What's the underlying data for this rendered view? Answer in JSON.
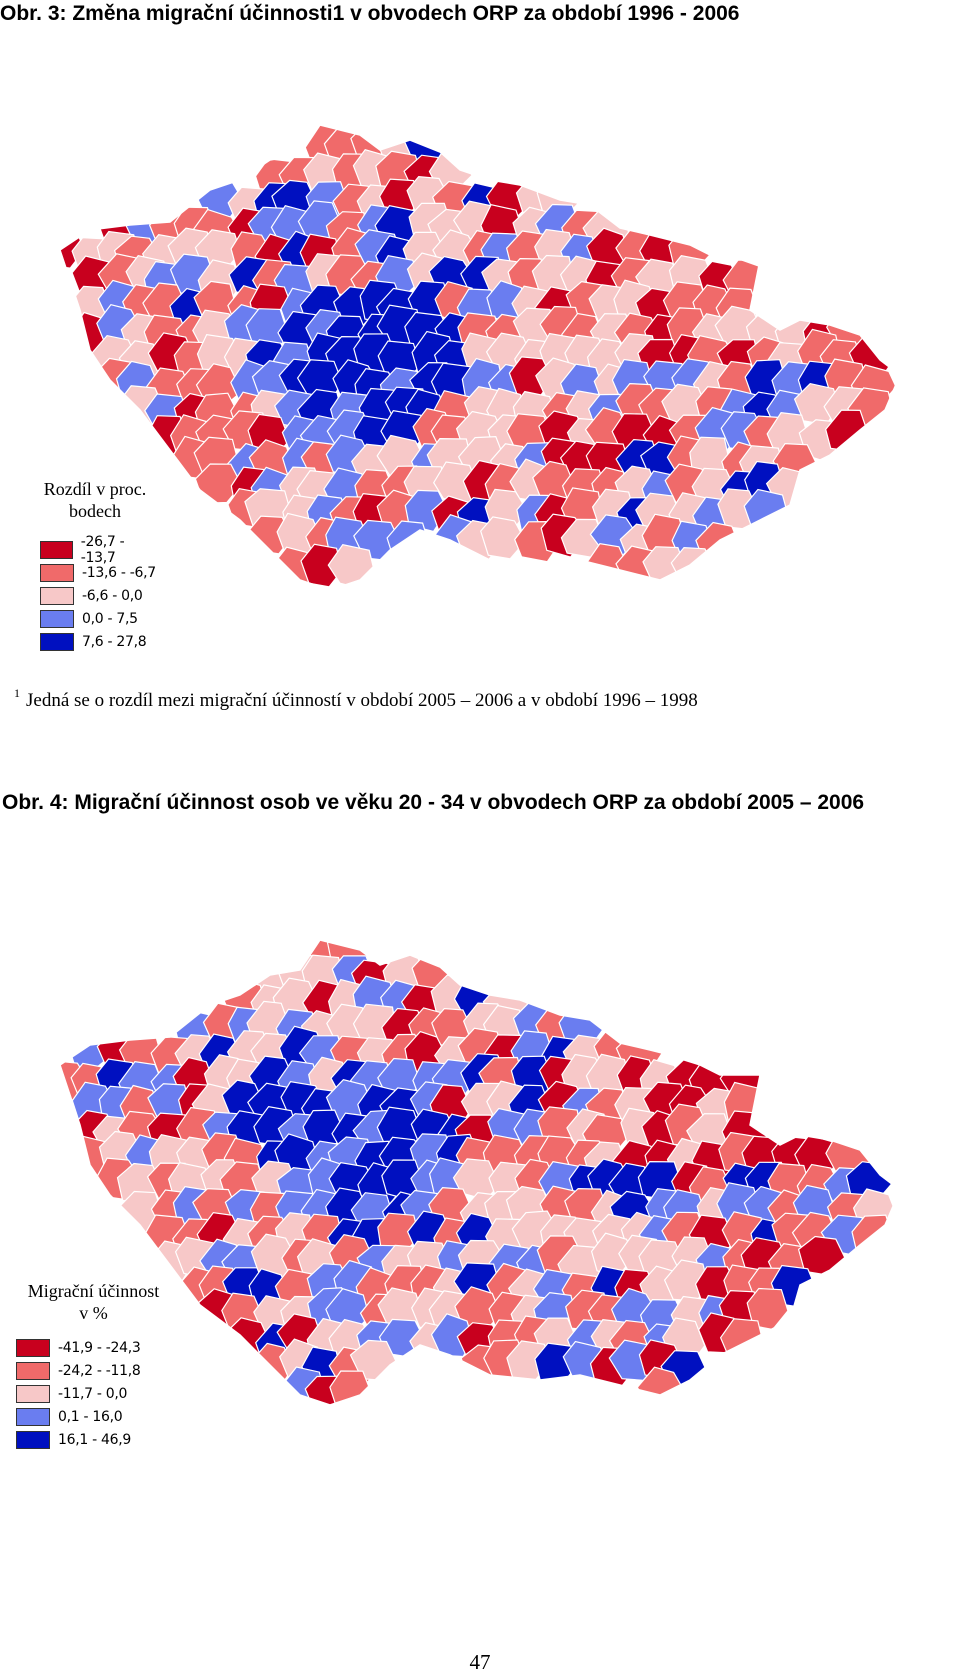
{
  "figure1": {
    "caption": "Obr. 3: Změna migrační účinnosti1 v obvodech ORP za období 1996 - 2006",
    "legend_title_line1": "Rozdíl v proc.",
    "legend_title_line2": "bodech",
    "legend": [
      {
        "label": "-26,7 - -13,7",
        "color": "#c8001e"
      },
      {
        "label": "-13,6 - -6,7",
        "color": "#f06a6a"
      },
      {
        "label": "-6,6 - 0,0",
        "color": "#f7c8c8"
      },
      {
        "label": "0,0 - 7,5",
        "color": "#6a7df0"
      },
      {
        "label": "7,6 - 27,8",
        "color": "#0010c0"
      }
    ],
    "footnote_marker": "1",
    "footnote": "Jedná se o rozdíl mezi migrační účinností v období 2005 – 2006 a v období 1996 – 1998"
  },
  "figure2": {
    "caption": "Obr. 4: Migrační účinnost osob ve věku 20 - 34 v obvodech ORP za období 2005 – 2006",
    "legend_title_line1": "Migrační účinnost",
    "legend_title_line2": "v %",
    "legend": [
      {
        "label": "-41,9 - -24,3",
        "color": "#c8001e"
      },
      {
        "label": "-24,2 - -11,8",
        "color": "#f06a6a"
      },
      {
        "label": "-11,7 - 0,0",
        "color": "#f7c8c8"
      },
      {
        "label": "0,1 - 16,0",
        "color": "#6a7df0"
      },
      {
        "label": "16,1 - 46,9",
        "color": "#0010c0"
      }
    ]
  },
  "page_number": "47"
}
